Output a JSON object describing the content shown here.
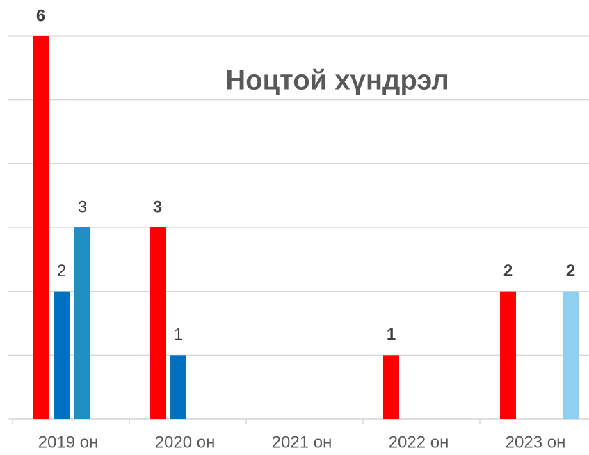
{
  "chart_data": {
    "type": "bar",
    "title": "Ноцтой хүндрэл",
    "categories": [
      "2019 он",
      "2020 он",
      "2021 он",
      "2022 он",
      "2023 он"
    ],
    "series": [
      {
        "color": "#ff0000",
        "bold_labels": true,
        "values": [
          6,
          3,
          null,
          1,
          2
        ]
      },
      {
        "color": "#0070c0",
        "bold_labels": false,
        "values": [
          2,
          1,
          null,
          null,
          null
        ]
      },
      {
        "color": "#1e90c8",
        "bold_labels": false,
        "values": [
          3,
          null,
          null,
          null,
          null
        ]
      },
      {
        "color": "#8fd0f0",
        "bold_labels": true,
        "values": [
          null,
          null,
          null,
          null,
          2
        ]
      }
    ],
    "ylim": [
      0,
      6
    ],
    "yticks": [
      0,
      1,
      2,
      3,
      4,
      5,
      6
    ],
    "grid": true
  }
}
